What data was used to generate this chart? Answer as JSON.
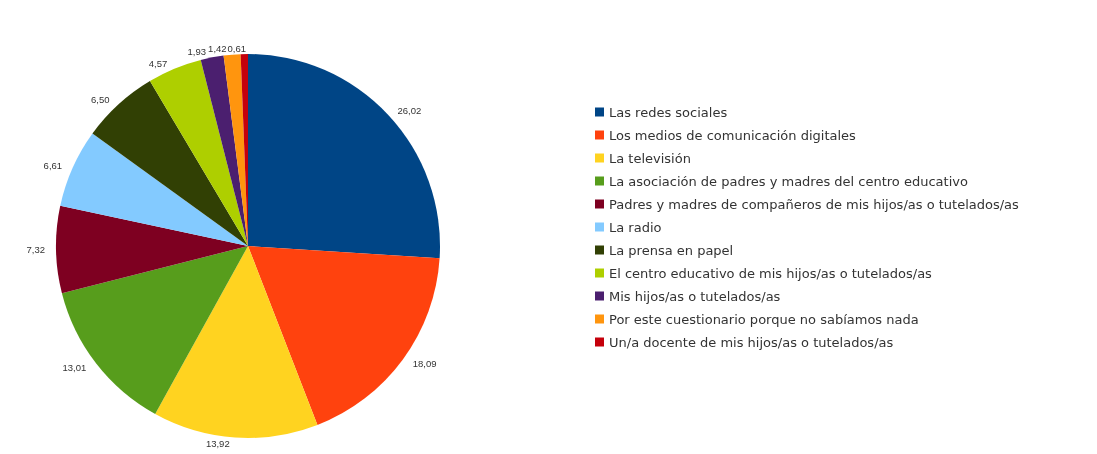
{
  "chart_data": {
    "type": "pie",
    "categories": [
      "Las redes sociales",
      "Los medios de comunicación digitales",
      "La televisión",
      "La asociación de padres y madres del centro educativo",
      "Padres y madres de compañeros de mis hijos/as o tutelados/as",
      "La radio",
      "La prensa en papel",
      "El centro educativo de mis hijos/as o tutelados/as",
      "Mis hijos/as o tutelados/as",
      "Por este cuestionario porque no sabíamos nada",
      "Un/a docente de mis hijos/as o tutelados/as"
    ],
    "values": [
      26.02,
      18.09,
      13.92,
      13.01,
      7.32,
      6.61,
      6.5,
      4.57,
      1.93,
      1.42,
      0.61
    ],
    "value_labels": [
      "26,02",
      "18,09",
      "13,92",
      "13,01",
      "7,32",
      "6,61",
      "6,50",
      "4,57",
      "1,93",
      "1,42",
      "0,61"
    ],
    "colors": [
      "#004586",
      "#ff420e",
      "#ffd320",
      "#579d1c",
      "#7e0021",
      "#83caff",
      "#314004",
      "#aecf00",
      "#4b1f6f",
      "#ff950e",
      "#c5000b"
    ],
    "legend": "right"
  }
}
